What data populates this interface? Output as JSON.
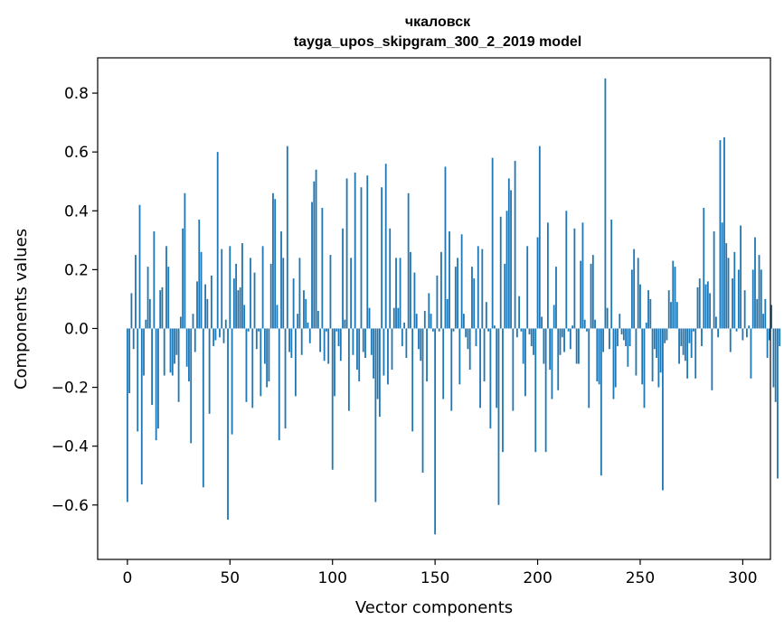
{
  "chart_data": {
    "type": "bar",
    "title": "чкаловск",
    "subtitle": "tayga_upos_skipgram_300_2_2019 model",
    "xlabel": "Vector components",
    "ylabel": "Components values",
    "xlim": [
      -14.5,
      313.5
    ],
    "ylim": [
      -0.785,
      0.92
    ],
    "xticks": [
      0,
      50,
      100,
      150,
      200,
      250,
      300
    ],
    "xtick_labels": [
      "0",
      "50",
      "100",
      "150",
      "200",
      "250",
      "300"
    ],
    "yticks": [
      -0.6,
      -0.4,
      -0.2,
      0.0,
      0.2,
      0.4,
      0.6,
      0.8
    ],
    "ytick_labels": [
      "−0.6",
      "−0.4",
      "−0.2",
      "0.0",
      "0.2",
      "0.4",
      "0.6",
      "0.8"
    ],
    "bar_color": "#1f77b4",
    "grid": false,
    "legend": "none",
    "values": [
      -0.59,
      -0.22,
      0.12,
      -0.07,
      0.25,
      -0.35,
      0.42,
      -0.53,
      -0.16,
      0.03,
      0.21,
      0.1,
      -0.26,
      0.33,
      -0.38,
      -0.34,
      0.13,
      0.14,
      -0.16,
      0.28,
      0.21,
      -0.15,
      -0.16,
      -0.12,
      -0.09,
      -0.25,
      0.04,
      0.34,
      0.46,
      -0.13,
      -0.18,
      -0.39,
      0.05,
      -0.08,
      0.16,
      0.37,
      0.26,
      -0.54,
      0.15,
      0.1,
      -0.29,
      0.18,
      -0.06,
      -0.04,
      0.6,
      -0.03,
      0.27,
      -0.05,
      0.03,
      -0.65,
      0.28,
      -0.36,
      0.17,
      0.22,
      0.13,
      0.14,
      0.29,
      0.08,
      -0.25,
      -0.01,
      0.24,
      -0.27,
      0.19,
      -0.07,
      -0.01,
      -0.23,
      0.28,
      -0.12,
      -0.2,
      -0.18,
      0.22,
      0.46,
      0.44,
      0.08,
      -0.38,
      0.33,
      0.24,
      -0.34,
      0.62,
      -0.08,
      -0.1,
      0.17,
      -0.23,
      0.05,
      0.24,
      -0.09,
      0.13,
      0.1,
      0.02,
      -0.05,
      0.43,
      0.5,
      0.54,
      0.06,
      -0.08,
      0.41,
      -0.11,
      -0.01,
      -0.12,
      0.25,
      -0.48,
      -0.23,
      -0.01,
      -0.06,
      -0.11,
      0.34,
      0.03,
      0.51,
      -0.28,
      0.24,
      -0.09,
      0.53,
      -0.14,
      -0.18,
      0.48,
      -0.08,
      -0.1,
      0.52,
      0.07,
      -0.09,
      -0.17,
      -0.59,
      -0.24,
      -0.3,
      0.48,
      -0.16,
      0.56,
      -0.19,
      0.34,
      -0.14,
      0.07,
      0.24,
      0.07,
      0.24,
      -0.06,
      0.02,
      -0.1,
      0.46,
      0.26,
      -0.35,
      0.19,
      0.05,
      -0.07,
      -0.11,
      -0.49,
      0.06,
      -0.18,
      0.12,
      0.05,
      -0.01,
      -0.7,
      0.18,
      -0.01,
      0.26,
      -0.24,
      0.55,
      0.1,
      0.33,
      -0.28,
      -0.01,
      0.21,
      0.24,
      -0.19,
      0.32,
      0.05,
      -0.03,
      -0.07,
      -0.14,
      0.21,
      0.17,
      -0.06,
      0.28,
      -0.27,
      0.27,
      -0.18,
      0.09,
      -0.01,
      -0.34,
      0.58,
      0.01,
      -0.27,
      -0.6,
      0.38,
      -0.42,
      0.22,
      0.4,
      0.51,
      0.47,
      -0.28,
      0.57,
      -0.03,
      0.11,
      -0.01,
      -0.12,
      -0.23,
      0.28,
      -0.02,
      -0.06,
      -0.09,
      -0.42,
      0.31,
      0.62,
      0.04,
      -0.12,
      -0.42,
      0.36,
      -0.14,
      -0.24,
      0.08,
      0.21,
      -0.21,
      -0.09,
      -0.03,
      -0.08,
      0.4,
      -0.01,
      -0.07,
      0.01,
      0.34,
      -0.12,
      -0.12,
      0.23,
      0.36,
      0.03,
      -0.01,
      -0.27,
      0.22,
      0.25,
      0.03,
      -0.18,
      -0.19,
      -0.5,
      -0.08,
      0.85,
      0.07,
      -0.07,
      0.37,
      -0.24,
      -0.2,
      -0.06,
      0.05,
      -0.02,
      -0.04,
      -0.06,
      -0.13,
      -0.06,
      0.2,
      0.27,
      -0.16,
      0.24,
      0.15,
      -0.19,
      -0.27,
      0.02,
      0.13,
      0.1,
      -0.18,
      -0.07,
      -0.1,
      -0.2,
      -0.15,
      -0.55,
      -0.05,
      -0.04,
      0.13,
      0.09,
      0.23,
      0.21,
      0.09,
      -0.12,
      -0.06,
      -0.09,
      -0.11,
      -0.17,
      -0.05,
      -0.1,
      -0.01,
      -0.17,
      0.14,
      0.17,
      -0.06,
      0.41,
      0.15,
      0.16,
      0.12,
      -0.21,
      0.33,
      0.04,
      -0.03,
      0.64,
      0.36,
      0.65,
      0.29,
      0.24,
      -0.08,
      0.17,
      0.26,
      -0.01,
      0.2,
      0.35,
      -0.04,
      0.13,
      -0.03,
      0.01,
      -0.17,
      0.2,
      0.31,
      0.1,
      0.25,
      0.2,
      0.05,
      0.1,
      -0.1,
      -0.04,
      0.08,
      -0.2,
      -0.25,
      -0.51,
      -0.06
    ]
  }
}
